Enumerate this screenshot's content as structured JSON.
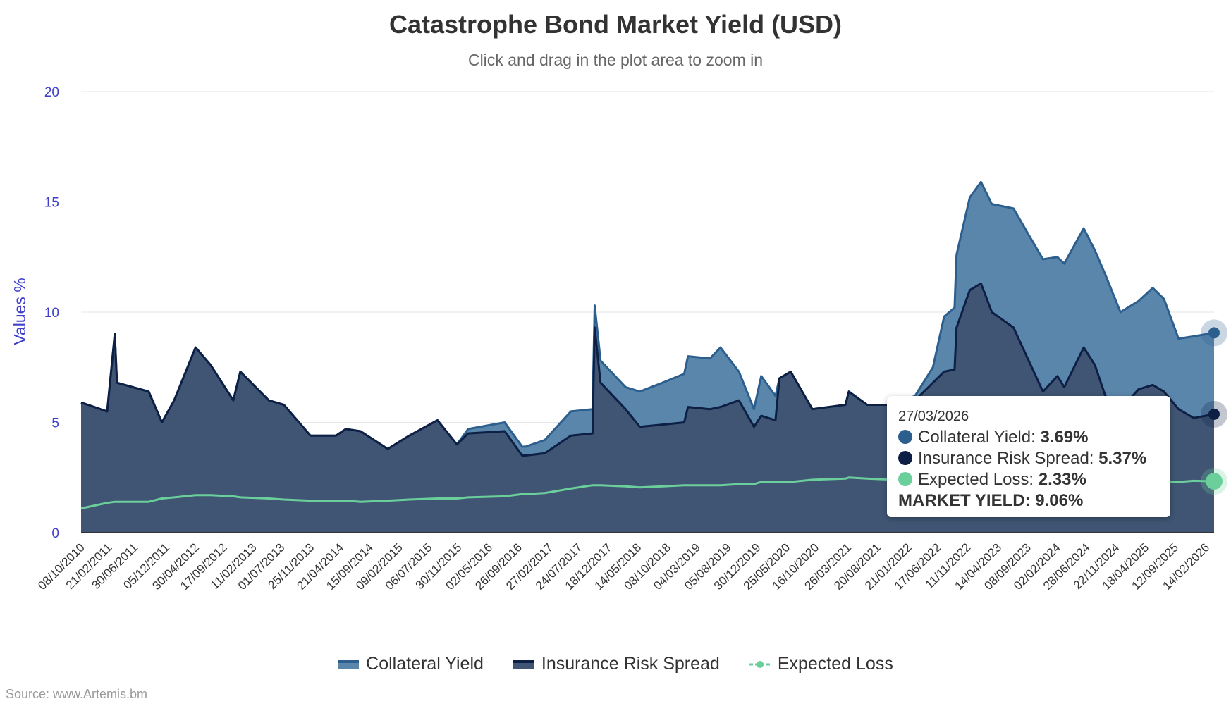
{
  "chart_data": {
    "type": "area",
    "title": "Catastrophe Bond Market Yield (USD)",
    "subtitle": "Click and drag in the plot area to zoom in",
    "ylabel": "Values %",
    "xlabel": "",
    "ylim": [
      0,
      20
    ],
    "yticks": [
      "0",
      "5",
      "10",
      "15",
      "20"
    ],
    "grid": true,
    "stacked": true,
    "legend_position": "bottom",
    "x_tick_labels": [
      "08/10/2010",
      "21/02/2011",
      "30/06/2011",
      "05/12/2011",
      "30/04/2012",
      "17/09/2012",
      "11/02/2013",
      "01/07/2013",
      "25/11/2013",
      "21/04/2014",
      "15/09/2014",
      "09/02/2015",
      "06/07/2015",
      "30/11/2015",
      "02/05/2016",
      "26/09/2016",
      "27/02/2017",
      "24/07/2017",
      "18/12/2017",
      "14/05/2018",
      "08/10/2018",
      "04/03/2019",
      "05/08/2019",
      "30/12/2019",
      "25/05/2020",
      "16/10/2020",
      "26/03/2021",
      "20/08/2021",
      "21/01/2022",
      "17/06/2022",
      "11/11/2022",
      "14/04/2023",
      "08/09/2023",
      "02/02/2024",
      "28/06/2024",
      "22/11/2024",
      "18/04/2025",
      "12/09/2025",
      "14/02/2026"
    ],
    "x": [
      "2010-10-08",
      "2011-02-15",
      "2011-03-25",
      "2011-04-05",
      "2011-09-10",
      "2011-11-15",
      "2012-01-15",
      "2012-05-01",
      "2012-07-15",
      "2012-11-05",
      "2012-12-10",
      "2013-05-01",
      "2013-07-15",
      "2013-11-25",
      "2014-04-01",
      "2014-05-20",
      "2014-08-01",
      "2014-12-15",
      "2015-04-01",
      "2015-08-20",
      "2015-11-25",
      "2016-01-20",
      "2016-07-20",
      "2016-10-15",
      "2016-11-01",
      "2017-02-05",
      "2017-06-15",
      "2017-10-01",
      "2017-10-12",
      "2017-11-10",
      "2018-03-15",
      "2018-05-25",
      "2018-09-15",
      "2019-01-01",
      "2019-01-20",
      "2019-05-10",
      "2019-07-01",
      "2019-10-01",
      "2019-12-15",
      "2020-01-20",
      "2020-03-31",
      "2020-04-20",
      "2020-06-15",
      "2020-10-01",
      "2021-03-15",
      "2021-04-01",
      "2021-07-01",
      "2021-11-10",
      "2022-02-25",
      "2022-05-25",
      "2022-07-20",
      "2022-09-10",
      "2022-09-20",
      "2022-11-25",
      "2023-01-20",
      "2023-03-15",
      "2023-07-01",
      "2023-09-15",
      "2023-11-25",
      "2024-02-05",
      "2024-03-10",
      "2024-06-15",
      "2024-08-10",
      "2024-10-01",
      "2024-12-15",
      "2025-03-15",
      "2025-05-25",
      "2025-07-20",
      "2025-10-01",
      "2025-12-15",
      "2026-03-27"
    ],
    "series": [
      {
        "name": "Collateral Yield",
        "color": "#2c5f8e",
        "fill": "#5a86ab",
        "values": [
          0,
          0,
          0,
          0,
          0,
          0,
          0,
          0,
          0,
          0,
          0,
          0,
          0,
          0,
          0,
          0,
          0,
          0,
          0,
          0,
          0,
          0.2,
          0.4,
          0.4,
          0.4,
          0.6,
          1.1,
          1.1,
          1.0,
          1.0,
          1.0,
          1.6,
          1.9,
          2.2,
          2.3,
          2.3,
          2.7,
          1.3,
          0.8,
          1.8,
          1.1,
          0,
          0,
          0,
          0,
          0,
          0,
          0,
          0.2,
          0.7,
          2.5,
          2.8,
          3.3,
          4.2,
          4.6,
          4.9,
          5.4,
          5.7,
          6.0,
          5.4,
          5.6,
          5.4,
          5.2,
          5.5,
          4.4,
          4.0,
          4.4,
          4.2,
          3.2,
          3.7,
          3.69
        ]
      },
      {
        "name": "Insurance Risk Spread",
        "color": "#0d1f44",
        "fill": "#3f5573",
        "values": [
          5.9,
          5.5,
          9.0,
          6.8,
          6.4,
          5.0,
          6.0,
          8.4,
          7.6,
          6.0,
          7.3,
          6.0,
          5.8,
          4.4,
          4.4,
          4.7,
          4.6,
          3.8,
          4.4,
          5.1,
          4.0,
          4.5,
          4.6,
          3.5,
          3.5,
          3.6,
          4.4,
          4.5,
          9.3,
          6.8,
          5.6,
          4.8,
          4.9,
          5.0,
          5.7,
          5.6,
          5.7,
          6.0,
          4.8,
          5.3,
          5.1,
          7.0,
          7.3,
          5.6,
          5.8,
          6.4,
          5.8,
          5.8,
          6.0,
          6.8,
          7.3,
          7.4,
          9.3,
          11.0,
          11.3,
          10.0,
          9.3,
          7.8,
          6.4,
          7.1,
          6.6,
          8.4,
          7.6,
          6.2,
          5.6,
          6.5,
          6.7,
          6.4,
          5.6,
          5.2,
          5.37
        ]
      },
      {
        "name": "Expected Loss",
        "color": "#6bcf9b",
        "values": [
          1.1,
          1.35,
          1.4,
          1.4,
          1.4,
          1.55,
          1.6,
          1.7,
          1.7,
          1.65,
          1.6,
          1.55,
          1.5,
          1.45,
          1.45,
          1.45,
          1.4,
          1.45,
          1.5,
          1.55,
          1.55,
          1.6,
          1.65,
          1.75,
          1.75,
          1.8,
          2.0,
          2.15,
          2.15,
          2.15,
          2.1,
          2.05,
          2.1,
          2.15,
          2.15,
          2.15,
          2.15,
          2.2,
          2.2,
          2.3,
          2.3,
          2.3,
          2.3,
          2.4,
          2.45,
          2.5,
          2.45,
          2.4,
          2.4,
          2.35,
          2.35,
          2.3,
          2.3,
          2.3,
          2.3,
          2.3,
          2.3,
          2.3,
          2.3,
          2.3,
          2.3,
          2.3,
          2.3,
          2.3,
          2.3,
          2.3,
          2.3,
          2.3,
          2.3,
          2.35,
          2.33
        ]
      }
    ]
  },
  "tooltip": {
    "date": "27/03/2026",
    "rows": [
      {
        "label": "Collateral Yield: ",
        "value": "3.69%",
        "color": "#2c5f8e"
      },
      {
        "label": "Insurance Risk Spread: ",
        "value": "5.37%",
        "color": "#0d1f44"
      },
      {
        "label": "Expected Loss: ",
        "value": "2.33%",
        "color": "#6bcf9b"
      }
    ],
    "total": "MARKET YIELD: 9.06%"
  },
  "legend": [
    "Collateral Yield",
    "Insurance Risk Spread",
    "Expected Loss"
  ],
  "source": "Source: www.Artemis.bm"
}
